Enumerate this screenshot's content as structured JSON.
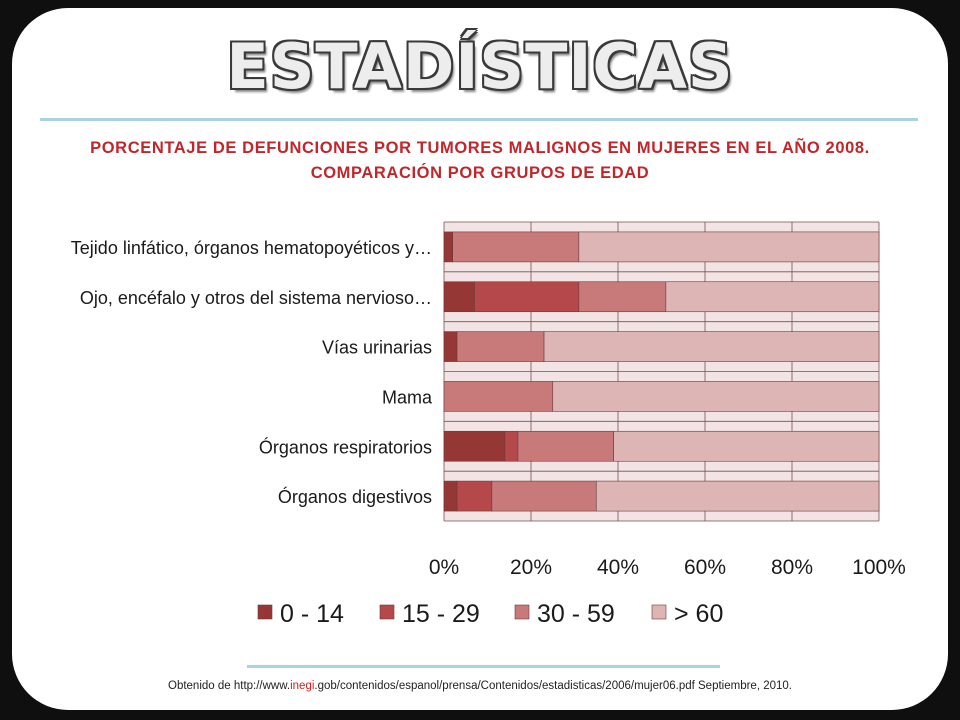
{
  "slide": {
    "title": "ESTADÍSTICAS",
    "subtitle": "PORCENTAJE DE DEFUNCIONES POR TUMORES MALIGNOS EN MUJERES EN EL AÑO 2008. COMPARACIÓN POR GRUPOS DE EDAD",
    "source_prefix": "Obtenido de http://www.",
    "source_highlight": "inegi",
    "source_suffix": ".gob/contenidos/espanol/prensa/Contenidos/estadisticas/2006/mujer06.pdf Septiembre, 2010.",
    "colors": {
      "title_fill": "#ededed",
      "title_outline": "#3a3a3a",
      "subtitle": "#c0262a",
      "rule": "#a9d3de",
      "source_highlight": "#cc2222"
    }
  },
  "chart_data": {
    "type": "bar",
    "orientation": "horizontal",
    "stacked": "percent",
    "categories": [
      "Tejido linfático, órganos hematopoyéticos y…",
      "Ojo, encéfalo y otros del sistema nervioso…",
      "Vías urinarias",
      "Mama",
      "Órganos respiratorios",
      "Órganos digestivos"
    ],
    "series": [
      {
        "name": "0 - 14",
        "color": "#953735",
        "values": [
          2,
          7,
          3,
          0,
          14,
          3
        ]
      },
      {
        "name": "15 - 29",
        "color": "#b5484a",
        "values": [
          0,
          24,
          0,
          0,
          3,
          8
        ]
      },
      {
        "name": "30 - 59",
        "color": "#c87a7a",
        "values": [
          29,
          20,
          20,
          25,
          22,
          24
        ]
      },
      {
        "name": "> 60",
        "color": "#deb5b5",
        "values": [
          69,
          49,
          77,
          75,
          61,
          65
        ]
      }
    ],
    "xlim": [
      0,
      100
    ],
    "xticks": [
      "0%",
      "20%",
      "40%",
      "60%",
      "80%",
      "100%"
    ],
    "grid": true,
    "plot_background": "#f2e4e4",
    "legend_position": "bottom"
  }
}
